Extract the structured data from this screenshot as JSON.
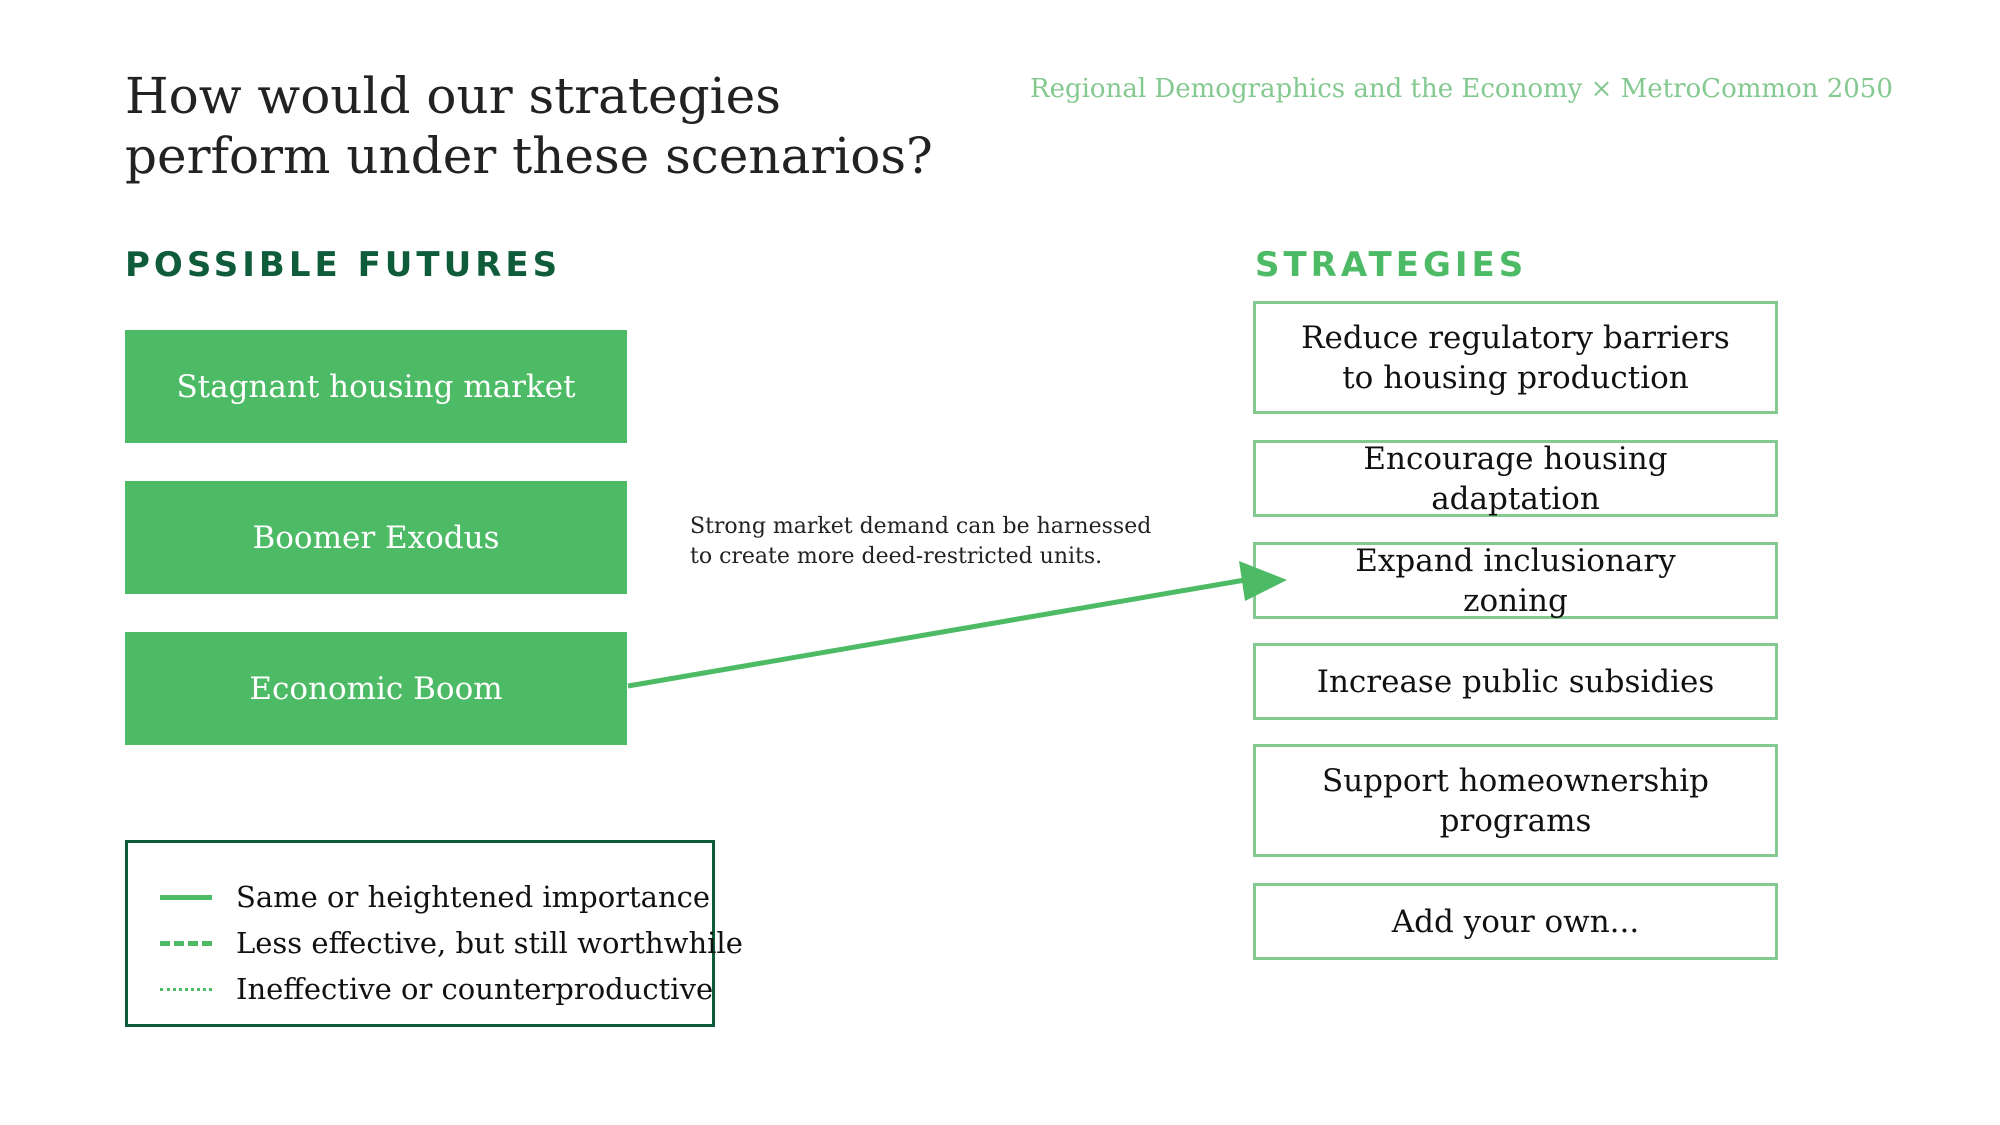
{
  "header": {
    "title": "How would our strategies perform under these scenarios?",
    "subtitle": "Regional Demographics and the Economy × MetroCommon 2050"
  },
  "futures": {
    "heading": "POSSIBLE FUTURES",
    "items": [
      "Stagnant housing market",
      "Boomer Exodus",
      "Economic Boom"
    ]
  },
  "strategies": {
    "heading": "STRATEGIES",
    "items": [
      "Reduce regulatory barriers to housing production",
      "Encourage housing adaptation",
      "Expand inclusionary zoning",
      "Increase public subsidies",
      "Support homeownership programs",
      "Add your own..."
    ]
  },
  "connection": {
    "from": "Economic Boom",
    "to": "Expand inclusionary zoning",
    "line_style": "solid",
    "annotation": "Strong market demand can be harnessed to create more deed-restricted units."
  },
  "legend": {
    "items": [
      {
        "style": "solid",
        "label": "Same or heightened importance"
      },
      {
        "style": "dashed",
        "label": "Less effective, but still worthwhile"
      },
      {
        "style": "dotted",
        "label": "Ineffective or counterproductive"
      }
    ]
  },
  "colors": {
    "accent_green": "#4dbb65",
    "dark_green": "#0f5c3b",
    "light_green": "#84c98f"
  }
}
